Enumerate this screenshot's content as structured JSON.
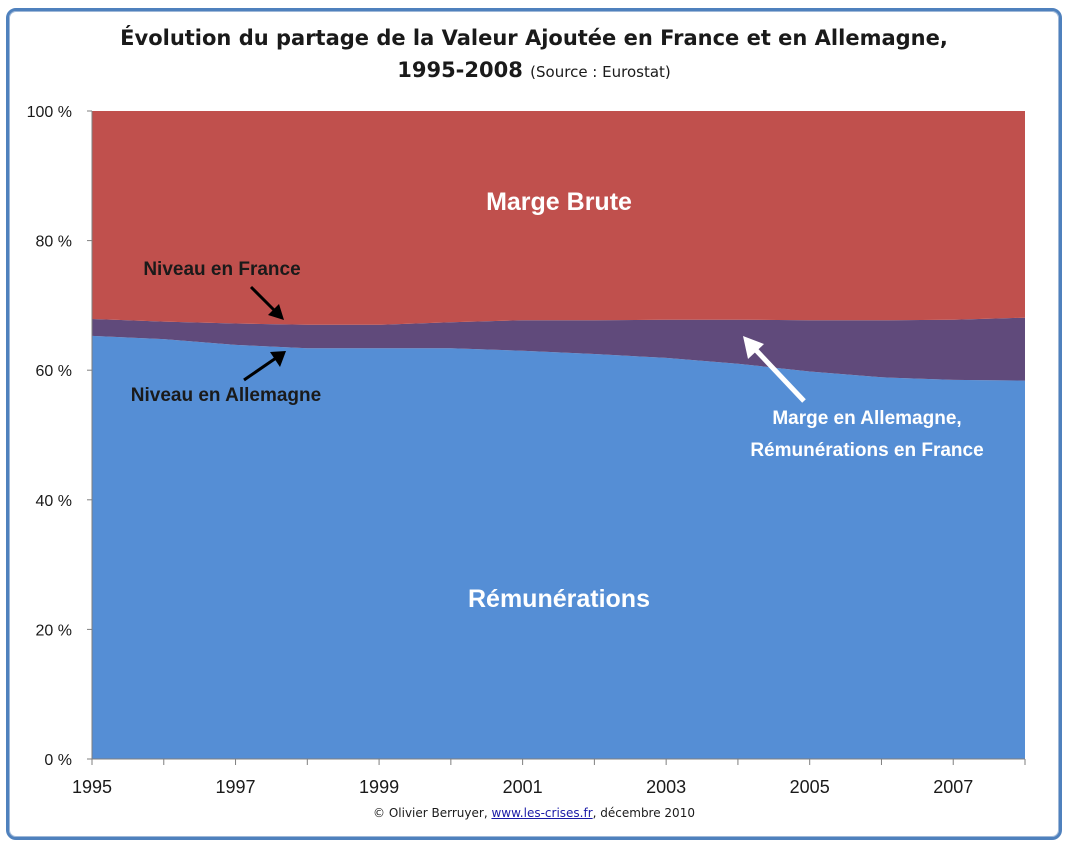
{
  "chart_data": {
    "type": "area",
    "title_line1": "Évolution du partage de la Valeur Ajoutée en France et en Allemagne,",
    "title_line2": "1995-2008",
    "title_source": "(Source : Eurostat)",
    "x": [
      1995,
      1996,
      1997,
      1998,
      1999,
      2000,
      2001,
      2002,
      2003,
      2004,
      2005,
      2006,
      2007,
      2008
    ],
    "x_ticks": [
      "1995",
      "1997",
      "1999",
      "2001",
      "2003",
      "2005",
      "2007"
    ],
    "y_ticks": [
      "0 %",
      "20 %",
      "40 %",
      "60 %",
      "80 %",
      "100 %"
    ],
    "ylim": [
      0,
      100
    ],
    "series": [
      {
        "name": "Rémunérations",
        "color": "#558ed5",
        "values": [
          65.3,
          64.8,
          63.9,
          63.4,
          63.4,
          63.4,
          63.0,
          62.5,
          61.9,
          61.0,
          59.8,
          58.9,
          58.5,
          58.4
        ]
      },
      {
        "name": "Marge en Allemagne, Rémunérations en France",
        "color": "#604a7b",
        "values": [
          2.6,
          2.7,
          3.3,
          3.6,
          3.6,
          4.0,
          4.7,
          5.2,
          5.9,
          6.8,
          7.9,
          8.8,
          9.3,
          9.7
        ]
      },
      {
        "name": "Marge Brute",
        "color": "#c0504d",
        "values": [
          32.1,
          32.5,
          32.8,
          33.0,
          33.0,
          32.6,
          32.3,
          32.3,
          32.2,
          32.2,
          32.3,
          32.3,
          32.2,
          31.9
        ]
      }
    ],
    "annotations": {
      "marge_brute": "Marge Brute",
      "remunerations": "Rémunérations",
      "niveau_france": "Niveau en France",
      "niveau_allemagne": "Niveau en Allemagne",
      "marge_allemagne_line1": "Marge en Allemagne,",
      "marge_allemagne_line2": "Rémunérations en France"
    }
  },
  "footer": {
    "prefix": "© Olivier Berruyer, ",
    "link": "www.les-crises.fr",
    "suffix": ", décembre 2010"
  }
}
